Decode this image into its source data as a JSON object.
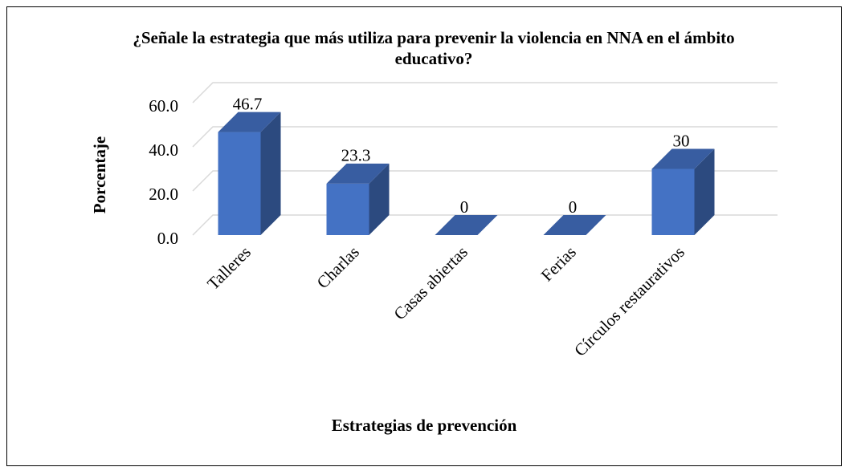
{
  "chart_data": {
    "type": "bar3d",
    "title": "¿Señale la estrategia que más utiliza para prevenir la violencia en NNA en el ámbito educativo?",
    "x_label": "Estrategias de prevención",
    "y_label": "Porcentaje",
    "categories": [
      "Talleres",
      "Charlas",
      "Casas abiertas",
      "Ferias",
      "Círculos restaurativos"
    ],
    "values": [
      46.7,
      23.3,
      0,
      0,
      30
    ],
    "color": "#4472c4",
    "ylim": [
      0,
      60
    ],
    "yticks": [
      {
        "value": 0,
        "label": "0.0"
      },
      {
        "value": 20,
        "label": "20.0"
      },
      {
        "value": 40,
        "label": "40.0"
      },
      {
        "value": 60,
        "label": "60.0"
      }
    ],
    "grid": true
  }
}
